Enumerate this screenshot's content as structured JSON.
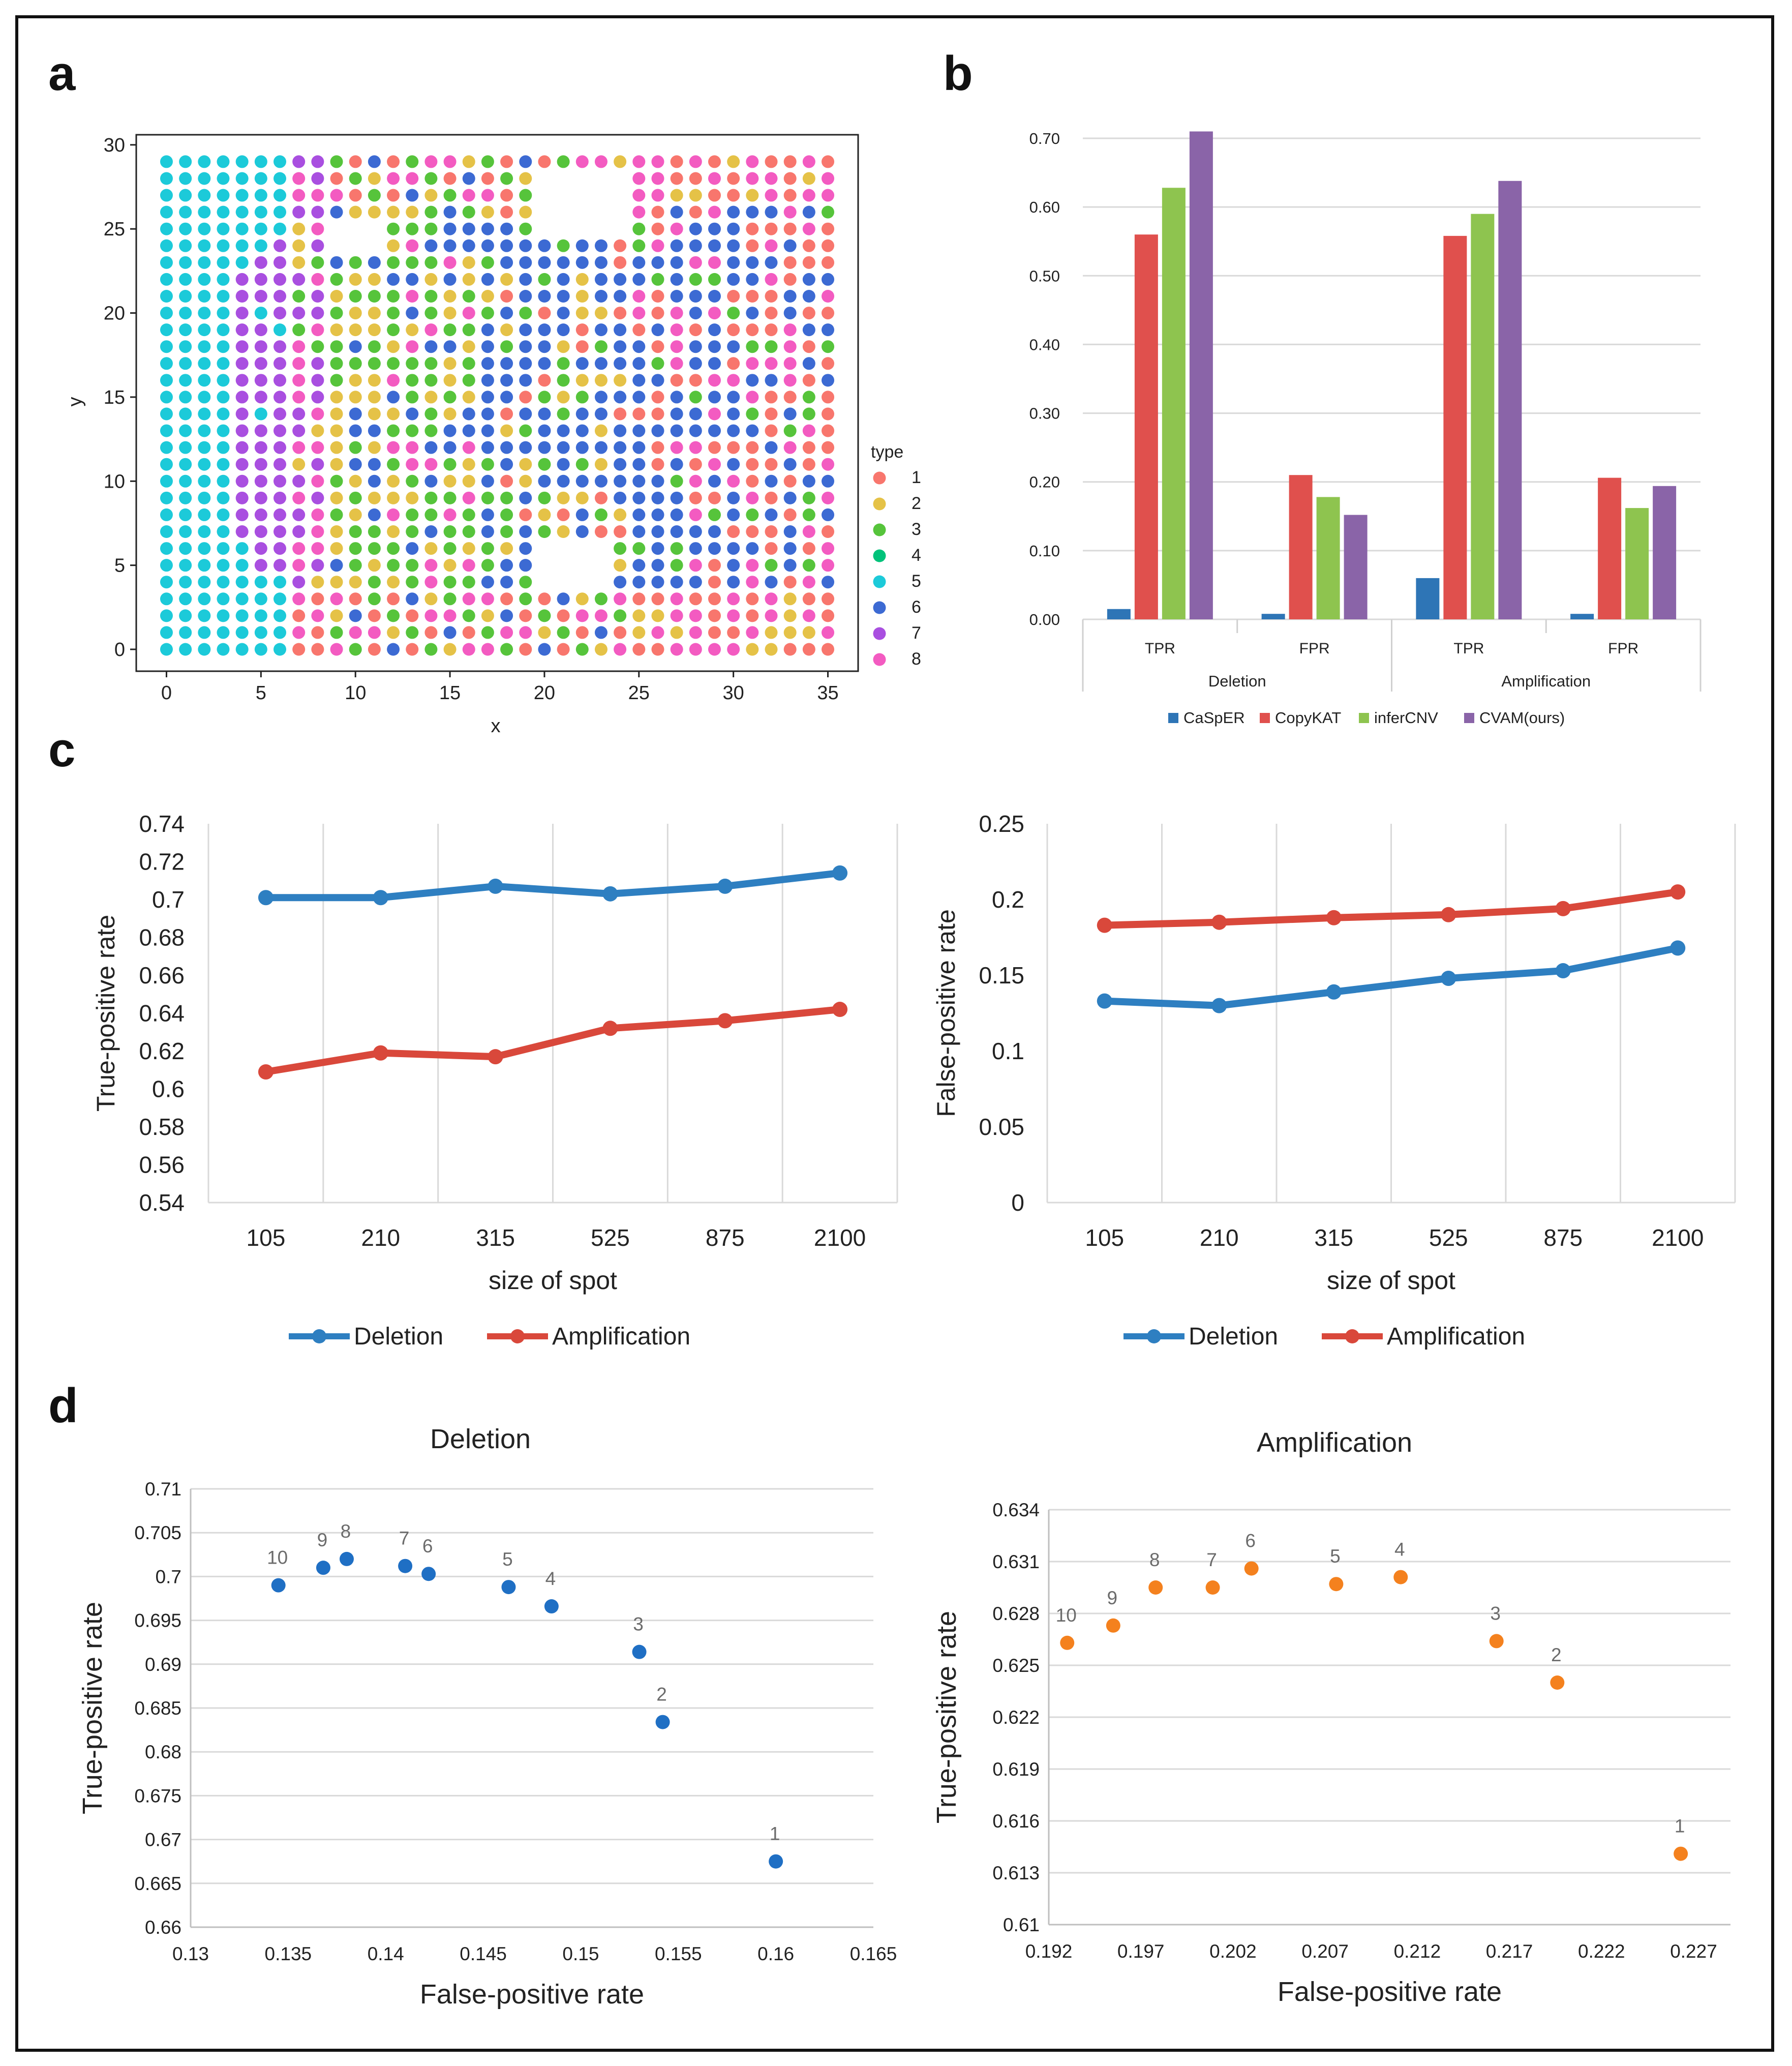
{
  "panel_labels": {
    "a": "a",
    "b": "b",
    "c": "c",
    "d": "d"
  },
  "colors": {
    "type": [
      "#f8766d",
      "#e5c247",
      "#56c43b",
      "#00c27a",
      "#1ccad9",
      "#3c6ad3",
      "#a94fe0",
      "#f35bc1"
    ],
    "caspar": "#2e75b6",
    "copykat": "#e0504d",
    "infercnv": "#8ec44f",
    "cvam": "#8a64a8",
    "deletion": "#2e7fc1",
    "amplification": "#d9483b",
    "scatter_blue": "#1f6fc4",
    "scatter_orange": "#f4811e"
  },
  "chart_data": [
    {
      "id": "a",
      "type": "scatter",
      "title": "",
      "xlabel": "x",
      "ylabel": "y",
      "xlim": [
        -1.6,
        36.6
      ],
      "ylim": [
        -1.3,
        30.6
      ],
      "xticks": [
        0,
        5,
        10,
        15,
        20,
        25,
        30,
        35
      ],
      "yticks": [
        0,
        5,
        10,
        15,
        20,
        25,
        30
      ],
      "legend_title": "type",
      "legend_entries": [
        "1",
        "2",
        "3",
        "4",
        "5",
        "6",
        "7",
        "8"
      ],
      "grid_x": [
        0,
        35
      ],
      "grid_y": [
        0,
        29
      ],
      "region_rule": "left block type 5; band type 7; mixed types 2/3 middle, type 6 right-center, types 1/8 along edges"
    },
    {
      "id": "b",
      "type": "bar",
      "title": "",
      "groups": [
        {
          "name": "Deletion",
          "categories": [
            "TPR",
            "FPR"
          ]
        },
        {
          "name": "Amplification",
          "categories": [
            "TPR",
            "FPR"
          ]
        }
      ],
      "series": [
        {
          "name": "CaSpER",
          "values": [
            0.015,
            0.008,
            0.06,
            0.008
          ]
        },
        {
          "name": "CopyKAT",
          "values": [
            0.56,
            0.21,
            0.558,
            0.206
          ]
        },
        {
          "name": "inferCNV",
          "values": [
            0.628,
            0.178,
            0.59,
            0.162
          ]
        },
        {
          "name": "CVAM(ours)",
          "values": [
            0.71,
            0.152,
            0.638,
            0.194
          ]
        }
      ],
      "ylim": [
        0,
        0.7
      ],
      "yticks": [
        "0.00",
        "0.10",
        "0.20",
        "0.30",
        "0.40",
        "0.50",
        "0.60",
        "0.70"
      ]
    },
    {
      "id": "c-left",
      "type": "line",
      "categories": [
        "105",
        "210",
        "315",
        "525",
        "875",
        "2100"
      ],
      "series": [
        {
          "name": "Deletion",
          "values": [
            0.701,
            0.701,
            0.707,
            0.703,
            0.707,
            0.714
          ]
        },
        {
          "name": "Amplification",
          "values": [
            0.609,
            0.619,
            0.617,
            0.632,
            0.636,
            0.642
          ]
        }
      ],
      "xlabel": "size of spot",
      "ylabel": "True-positive rate",
      "ylim": [
        0.54,
        0.74
      ],
      "yticks": [
        "0.54",
        "0.56",
        "0.58",
        "0.6",
        "0.62",
        "0.64",
        "0.66",
        "0.68",
        "0.7",
        "0.72",
        "0.74"
      ]
    },
    {
      "id": "c-right",
      "type": "line",
      "categories": [
        "105",
        "210",
        "315",
        "525",
        "875",
        "2100"
      ],
      "series": [
        {
          "name": "Deletion",
          "values": [
            0.133,
            0.13,
            0.139,
            0.148,
            0.153,
            0.168
          ]
        },
        {
          "name": "Amplification",
          "values": [
            0.183,
            0.185,
            0.188,
            0.19,
            0.194,
            0.205
          ]
        }
      ],
      "xlabel": "size of spot",
      "ylabel": "False-positive rate",
      "ylim": [
        0,
        0.25
      ],
      "yticks": [
        "0",
        "0.05",
        "0.1",
        "0.15",
        "0.2",
        "0.25"
      ]
    },
    {
      "id": "d-left",
      "type": "scatter",
      "title": "Deletion",
      "xlabel": "False-positive rate",
      "ylabel": "True-positive rate",
      "xlim": [
        0.13,
        0.165
      ],
      "ylim": [
        0.66,
        0.71
      ],
      "xticks": [
        "0.13",
        "0.135",
        "0.14",
        "0.145",
        "0.15",
        "0.155",
        "0.16",
        "0.165"
      ],
      "yticks": [
        "0.66",
        "0.665",
        "0.67",
        "0.675",
        "0.68",
        "0.685",
        "0.69",
        "0.695",
        "0.7",
        "0.705",
        "0.71"
      ],
      "points": [
        {
          "label": "10",
          "x": 0.1345,
          "y": 0.699
        },
        {
          "label": "9",
          "x": 0.1368,
          "y": 0.701
        },
        {
          "label": "8",
          "x": 0.138,
          "y": 0.702
        },
        {
          "label": "7",
          "x": 0.141,
          "y": 0.7012
        },
        {
          "label": "6",
          "x": 0.1422,
          "y": 0.7003
        },
        {
          "label": "5",
          "x": 0.1463,
          "y": 0.6988
        },
        {
          "label": "4",
          "x": 0.1485,
          "y": 0.6966
        },
        {
          "label": "3",
          "x": 0.153,
          "y": 0.6914
        },
        {
          "label": "2",
          "x": 0.1542,
          "y": 0.6834
        },
        {
          "label": "1",
          "x": 0.16,
          "y": 0.6675
        }
      ]
    },
    {
      "id": "d-right",
      "type": "scatter",
      "title": "Amplification",
      "xlabel": "False-positive rate",
      "ylabel": "True-positive rate",
      "xlim": [
        0.192,
        0.229
      ],
      "ylim": [
        0.61,
        0.634
      ],
      "xticks": [
        "0.192",
        "0.197",
        "0.202",
        "0.207",
        "0.212",
        "0.217",
        "0.222",
        "0.227"
      ],
      "yticks": [
        "0.61",
        "0.613",
        "0.616",
        "0.619",
        "0.622",
        "0.625",
        "0.628",
        "0.631",
        "0.634"
      ],
      "points": [
        {
          "label": "10",
          "x": 0.193,
          "y": 0.6263
        },
        {
          "label": "9",
          "x": 0.1955,
          "y": 0.6273
        },
        {
          "label": "8",
          "x": 0.1978,
          "y": 0.6295
        },
        {
          "label": "7",
          "x": 0.2009,
          "y": 0.6295
        },
        {
          "label": "6",
          "x": 0.203,
          "y": 0.6306
        },
        {
          "label": "5",
          "x": 0.2076,
          "y": 0.6297
        },
        {
          "label": "4",
          "x": 0.2111,
          "y": 0.6301
        },
        {
          "label": "3",
          "x": 0.2163,
          "y": 0.6264
        },
        {
          "label": "2",
          "x": 0.2196,
          "y": 0.624
        },
        {
          "label": "1",
          "x": 0.2263,
          "y": 0.6141
        }
      ]
    }
  ]
}
